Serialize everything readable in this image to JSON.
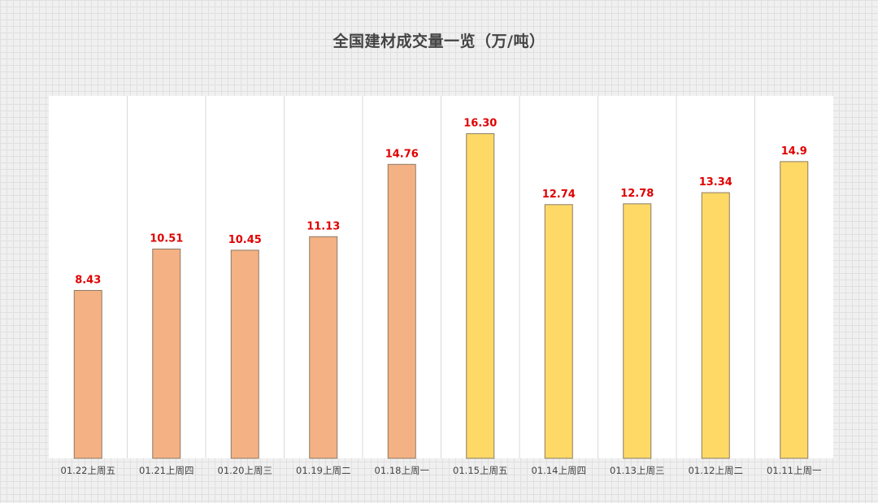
{
  "chart_data": {
    "type": "bar",
    "title": "全国建材成交量一览（万/吨）",
    "xlabel": "",
    "ylabel": "",
    "ylim": [
      0,
      18.2
    ],
    "grid": false,
    "categories": [
      "01.22上周五",
      "01.21上周四",
      "01.20上周三",
      "01.19上周二",
      "01.18上周一",
      "01.15上周五",
      "01.14上周四",
      "01.13上周三",
      "01.12上周二",
      "01.11上周一"
    ],
    "values": [
      8.43,
      10.51,
      10.45,
      11.13,
      14.76,
      16.3,
      12.74,
      12.78,
      13.34,
      14.9
    ],
    "value_labels": [
      "8.43",
      "10.51",
      "10.45",
      "11.13",
      "14.76",
      "16.30",
      "12.74",
      "12.78",
      "13.34",
      "14.9"
    ],
    "bar_colors": [
      "#f4b183",
      "#f4b183",
      "#f4b183",
      "#f4b183",
      "#f4b183",
      "#ffd966",
      "#ffd966",
      "#ffd966",
      "#ffd966",
      "#ffd966"
    ],
    "label_color": "#e00000"
  }
}
